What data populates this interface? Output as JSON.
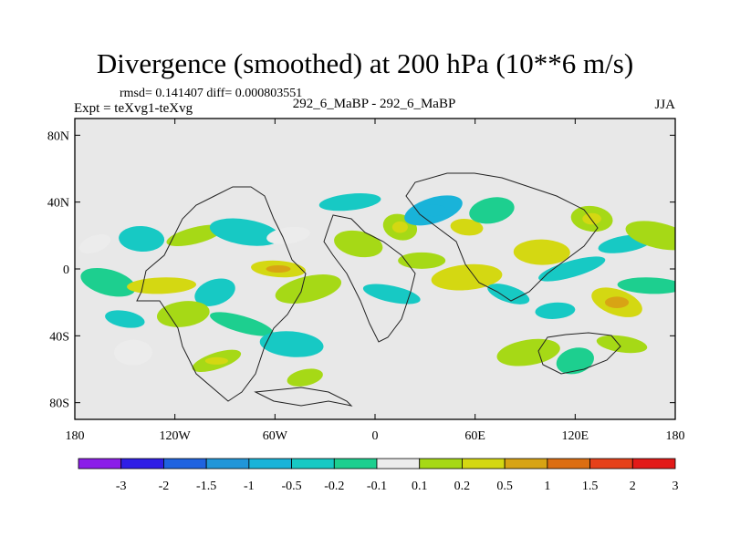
{
  "chart_data": {
    "type": "contour-map",
    "title": "Divergence (smoothed) at 200 hPa (10**6 m/s)",
    "stats_label": "rmsd= 0.141407 diff= 0.000803551",
    "experiment_label": "Expt = teXvg1-teXvg",
    "comparison_label": "292_6_MaBP - 292_6_MaBP",
    "season": "JJA",
    "x_axis": {
      "range": [
        -180,
        180
      ],
      "ticks": [
        {
          "value": -180,
          "label": "180"
        },
        {
          "value": -120,
          "label": "120W"
        },
        {
          "value": -60,
          "label": "60W"
        },
        {
          "value": 0,
          "label": "0"
        },
        {
          "value": 60,
          "label": "60E"
        },
        {
          "value": 120,
          "label": "120E"
        },
        {
          "value": 180,
          "label": "180"
        }
      ]
    },
    "y_axis": {
      "range": [
        -90,
        90
      ],
      "ticks": [
        {
          "value": 80,
          "label": "80N"
        },
        {
          "value": 40,
          "label": "40N"
        },
        {
          "value": 0,
          "label": "0"
        },
        {
          "value": -40,
          "label": "40S"
        },
        {
          "value": -80,
          "label": "80S"
        }
      ]
    },
    "colorbar": {
      "labels": [
        "-3",
        "-2",
        "-1.5",
        "-1",
        "-0.5",
        "-0.2",
        "-0.1",
        "0.1",
        "0.2",
        "0.5",
        "1",
        "1.5",
        "2",
        "3"
      ],
      "colors": [
        "#8b1ee8",
        "#2f1ee6",
        "#1f63e0",
        "#2196d9",
        "#19b3d9",
        "#17c9c4",
        "#1dcf8f",
        "#ececec",
        "#a6d916",
        "#d4d812",
        "#d8a414",
        "#dc6e12",
        "#e6411a",
        "#e21a18"
      ]
    },
    "regions": [
      {
        "lon": -168,
        "lat": 15,
        "value": 0.15
      },
      {
        "lon": -140,
        "lat": 18,
        "value": -0.3
      },
      {
        "lon": -108,
        "lat": 20,
        "value": 0.2
      },
      {
        "lon": -78,
        "lat": 22,
        "value": -0.3
      },
      {
        "lon": -52,
        "lat": 20,
        "value": 0.15
      },
      {
        "lon": -160,
        "lat": -8,
        "value": -0.15
      },
      {
        "lon": -128,
        "lat": -10,
        "value": 0.6
      },
      {
        "lon": -96,
        "lat": -14,
        "value": -0.2
      },
      {
        "lon": -58,
        "lat": 0,
        "value": 0.7
      },
      {
        "lon": -40,
        "lat": -12,
        "value": 0.3
      },
      {
        "lon": -150,
        "lat": -30,
        "value": -0.2
      },
      {
        "lon": -115,
        "lat": -27,
        "value": 0.2
      },
      {
        "lon": -80,
        "lat": -33,
        "value": -0.15
      },
      {
        "lon": -145,
        "lat": -50,
        "value": 0.15
      },
      {
        "lon": -95,
        "lat": -55,
        "value": 0.4
      },
      {
        "lon": -50,
        "lat": -45,
        "value": -0.2
      },
      {
        "lon": -42,
        "lat": -65,
        "value": 0.2
      },
      {
        "lon": -10,
        "lat": 15,
        "value": 0.2
      },
      {
        "lon": -15,
        "lat": 40,
        "value": -0.3
      },
      {
        "lon": 15,
        "lat": 25,
        "value": 0.4
      },
      {
        "lon": 28,
        "lat": 5,
        "value": 0.2
      },
      {
        "lon": 35,
        "lat": 35,
        "value": -0.5
      },
      {
        "lon": 55,
        "lat": 25,
        "value": 0.6
      },
      {
        "lon": 70,
        "lat": 35,
        "value": -0.15
      },
      {
        "lon": 10,
        "lat": -15,
        "value": -0.3
      },
      {
        "lon": 55,
        "lat": -5,
        "value": 0.5
      },
      {
        "lon": 80,
        "lat": -15,
        "value": -0.2
      },
      {
        "lon": 100,
        "lat": 10,
        "value": 0.5
      },
      {
        "lon": 118,
        "lat": 0,
        "value": -0.3
      },
      {
        "lon": 130,
        "lat": 30,
        "value": 0.4
      },
      {
        "lon": 150,
        "lat": 15,
        "value": -0.2
      },
      {
        "lon": 170,
        "lat": 20,
        "value": 0.2
      },
      {
        "lon": 108,
        "lat": -25,
        "value": -0.2
      },
      {
        "lon": 145,
        "lat": -20,
        "value": 0.8
      },
      {
        "lon": 165,
        "lat": -10,
        "value": -0.15
      },
      {
        "lon": 120,
        "lat": -55,
        "value": -0.15
      },
      {
        "lon": 148,
        "lat": -45,
        "value": 0.2
      },
      {
        "lon": 92,
        "lat": -50,
        "value": 0.2
      }
    ]
  }
}
